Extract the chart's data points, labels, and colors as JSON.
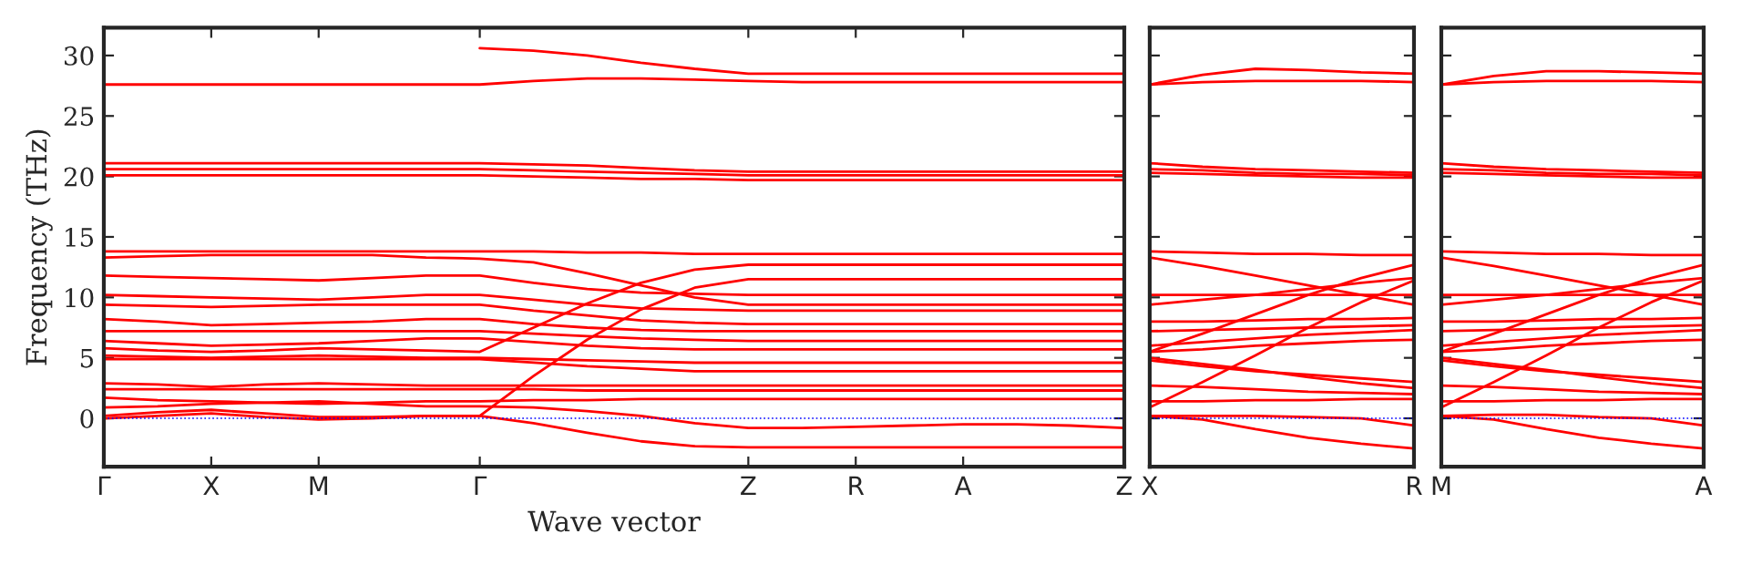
{
  "chart_data": [
    {
      "type": "line",
      "xlabel": "Wave vector",
      "ylabel": "Frequency (THz)",
      "categories": [
        "Γ",
        null,
        "X",
        null,
        "M",
        null,
        null,
        "Γ",
        null,
        null,
        null,
        null,
        "Z",
        null,
        "R",
        null,
        "A",
        null,
        null,
        "Z"
      ],
      "ylim": [
        -4,
        32.3
      ],
      "yticks": [
        0,
        5,
        10,
        15,
        20,
        25,
        30
      ],
      "grid": false,
      "marker": "none",
      "line_style": "solid",
      "ref_lines": [
        {
          "axis": "y",
          "value": 0,
          "color": "#0000ff",
          "line_style": "dotted"
        }
      ],
      "series": [
        {
          "color": "#ff0000",
          "values": [
            null,
            null,
            null,
            null,
            null,
            null,
            null,
            30.6,
            30.4,
            30.0,
            29.4,
            28.9,
            28.5,
            28.5,
            28.5,
            28.5,
            28.5,
            28.5,
            28.5,
            28.5
          ]
        },
        {
          "color": "#ff0000",
          "values": [
            27.6,
            27.6,
            27.6,
            27.6,
            27.6,
            27.6,
            27.6,
            27.6,
            27.9,
            28.1,
            28.1,
            28.0,
            27.9,
            27.8,
            27.8,
            27.8,
            27.8,
            27.8,
            27.8,
            27.8
          ]
        },
        {
          "color": "#ff0000",
          "values": [
            21.1,
            21.1,
            21.1,
            21.1,
            21.1,
            21.1,
            21.1,
            21.1,
            21.0,
            20.9,
            20.7,
            20.5,
            20.4,
            20.4,
            20.4,
            20.4,
            20.4,
            20.4,
            20.4,
            20.4
          ]
        },
        {
          "color": "#ff0000",
          "values": [
            20.6,
            20.6,
            20.6,
            20.6,
            20.6,
            20.6,
            20.6,
            20.6,
            20.5,
            20.4,
            20.3,
            20.2,
            20.1,
            20.1,
            20.1,
            20.1,
            20.1,
            20.1,
            20.1,
            20.1
          ]
        },
        {
          "color": "#ff0000",
          "values": [
            20.1,
            20.1,
            20.1,
            20.1,
            20.1,
            20.1,
            20.1,
            20.1,
            20.0,
            19.9,
            19.8,
            19.8,
            19.7,
            19.7,
            19.7,
            19.7,
            19.7,
            19.7,
            19.7,
            19.7
          ]
        },
        {
          "color": "#ff0000",
          "values": [
            13.8,
            13.8,
            13.8,
            13.8,
            13.8,
            13.8,
            13.8,
            13.8,
            13.8,
            13.7,
            13.7,
            13.6,
            13.6,
            13.6,
            13.6,
            13.6,
            13.6,
            13.6,
            13.6,
            13.6
          ]
        },
        {
          "color": "#ff0000",
          "values": [
            13.3,
            13.4,
            13.5,
            13.5,
            13.5,
            13.5,
            13.3,
            13.2,
            12.9,
            12.0,
            11.0,
            10.0,
            9.4,
            9.4,
            9.4,
            9.4,
            9.4,
            9.4,
            9.4,
            9.4
          ]
        },
        {
          "color": "#ff0000",
          "values": [
            5.8,
            5.6,
            5.5,
            5.6,
            5.8,
            5.7,
            5.6,
            5.5,
            7.5,
            9.5,
            11.2,
            12.3,
            12.7,
            12.7,
            12.7,
            12.7,
            12.7,
            12.7,
            12.7,
            12.7
          ]
        },
        {
          "color": "#ff0000",
          "values": [
            0.2,
            0.5,
            0.7,
            0.4,
            0.1,
            0.1,
            0.2,
            0.2,
            3.5,
            6.5,
            9.0,
            10.8,
            11.5,
            11.5,
            11.5,
            11.5,
            11.5,
            11.5,
            11.5,
            11.5
          ]
        },
        {
          "color": "#ff0000",
          "values": [
            11.8,
            11.7,
            11.6,
            11.5,
            11.4,
            11.6,
            11.8,
            11.8,
            11.2,
            10.7,
            10.4,
            10.3,
            10.2,
            10.2,
            10.2,
            10.2,
            10.2,
            10.2,
            10.2,
            10.2
          ]
        },
        {
          "color": "#ff0000",
          "values": [
            10.2,
            10.1,
            10.0,
            9.9,
            9.8,
            10.0,
            10.2,
            10.2,
            9.8,
            9.4,
            9.1,
            9.0,
            8.9,
            8.9,
            8.9,
            8.9,
            8.9,
            8.9,
            8.9,
            8.9
          ]
        },
        {
          "color": "#ff0000",
          "values": [
            9.4,
            9.3,
            9.2,
            9.3,
            9.4,
            9.4,
            9.4,
            9.4,
            8.9,
            8.5,
            8.1,
            7.9,
            7.8,
            7.8,
            7.8,
            7.8,
            7.8,
            7.8,
            7.8,
            7.8
          ]
        },
        {
          "color": "#ff0000",
          "values": [
            8.2,
            8.0,
            7.7,
            7.8,
            7.9,
            8.0,
            8.2,
            8.2,
            7.8,
            7.5,
            7.3,
            7.2,
            7.2,
            7.2,
            7.2,
            7.2,
            7.2,
            7.2,
            7.2,
            7.2
          ]
        },
        {
          "color": "#ff0000",
          "values": [
            7.2,
            7.2,
            7.2,
            7.2,
            7.2,
            7.2,
            7.2,
            7.2,
            7.0,
            6.8,
            6.6,
            6.5,
            6.4,
            6.4,
            6.4,
            6.4,
            6.4,
            6.4,
            6.4,
            6.4
          ]
        },
        {
          "color": "#ff0000",
          "values": [
            6.4,
            6.2,
            6.0,
            6.1,
            6.2,
            6.4,
            6.6,
            6.6,
            6.3,
            6.0,
            5.8,
            5.7,
            5.7,
            5.7,
            5.7,
            5.7,
            5.7,
            5.7,
            5.7,
            5.7
          ]
        },
        {
          "color": "#ff0000",
          "values": [
            5.2,
            5.1,
            5.0,
            5.1,
            5.2,
            5.1,
            5.0,
            5.0,
            4.9,
            4.8,
            4.7,
            4.6,
            4.6,
            4.6,
            4.6,
            4.6,
            4.6,
            4.6,
            4.6,
            4.6
          ]
        },
        {
          "color": "#ff0000",
          "values": [
            4.9,
            4.9,
            4.9,
            4.9,
            4.9,
            4.9,
            4.9,
            4.9,
            4.6,
            4.3,
            4.1,
            3.9,
            3.9,
            3.9,
            3.9,
            3.9,
            3.9,
            3.9,
            3.9,
            3.9
          ]
        },
        {
          "color": "#ff0000",
          "values": [
            2.9,
            2.8,
            2.6,
            2.8,
            2.9,
            2.8,
            2.7,
            2.7,
            2.7,
            2.7,
            2.7,
            2.7,
            2.7,
            2.7,
            2.7,
            2.7,
            2.7,
            2.7,
            2.7,
            2.7
          ]
        },
        {
          "color": "#ff0000",
          "values": [
            2.4,
            2.4,
            2.4,
            2.4,
            2.4,
            2.4,
            2.4,
            2.4,
            2.4,
            2.3,
            2.3,
            2.3,
            2.3,
            2.3,
            2.3,
            2.3,
            2.3,
            2.3,
            2.3,
            2.3
          ]
        },
        {
          "color": "#ff0000",
          "values": [
            1.7,
            1.5,
            1.4,
            1.3,
            1.2,
            1.3,
            1.4,
            1.4,
            1.5,
            1.5,
            1.6,
            1.6,
            1.6,
            1.6,
            1.6,
            1.6,
            1.6,
            1.6,
            1.6,
            1.6
          ]
        },
        {
          "color": "#ff0000",
          "values": [
            0.9,
            1.0,
            1.2,
            1.3,
            1.4,
            1.2,
            1.0,
            1.0,
            0.9,
            0.6,
            0.2,
            -0.4,
            -0.8,
            -0.8,
            -0.7,
            -0.6,
            -0.5,
            -0.5,
            -0.6,
            -0.8
          ]
        },
        {
          "color": "#ff0000",
          "values": [
            0.0,
            0.2,
            0.4,
            0.1,
            -0.1,
            0.0,
            0.2,
            0.2,
            -0.4,
            -1.2,
            -1.9,
            -2.3,
            -2.4,
            -2.4,
            -2.4,
            -2.4,
            -2.4,
            -2.4,
            -2.4,
            -2.4
          ]
        }
      ]
    },
    {
      "type": "line",
      "categories": [
        "X",
        null,
        null,
        null,
        null,
        "R"
      ],
      "ylim": [
        -4,
        32.3
      ],
      "yticks": [
        0,
        5,
        10,
        15,
        20,
        25,
        30
      ],
      "tick_labels": "x",
      "grid": false,
      "marker": "none",
      "line_style": "solid",
      "ref_lines": [
        {
          "axis": "y",
          "value": 0,
          "color": "#0000ff",
          "line_style": "dotted"
        }
      ],
      "series": [
        {
          "color": "#ff0000",
          "values": [
            27.6,
            28.4,
            28.9,
            28.8,
            28.6,
            28.5
          ]
        },
        {
          "color": "#ff0000",
          "values": [
            27.6,
            27.8,
            27.9,
            27.9,
            27.9,
            27.8
          ]
        },
        {
          "color": "#ff0000",
          "values": [
            21.1,
            20.8,
            20.6,
            20.5,
            20.4,
            20.3
          ]
        },
        {
          "color": "#ff0000",
          "values": [
            20.6,
            20.5,
            20.3,
            20.2,
            20.2,
            20.1
          ]
        },
        {
          "color": "#ff0000",
          "values": [
            20.3,
            20.2,
            20.1,
            20.0,
            19.9,
            19.9
          ]
        },
        {
          "color": "#ff0000",
          "values": [
            13.8,
            13.7,
            13.6,
            13.6,
            13.5,
            13.5
          ]
        },
        {
          "color": "#ff0000",
          "values": [
            13.3,
            12.6,
            11.8,
            11.0,
            10.2,
            9.4
          ]
        },
        {
          "color": "#ff0000",
          "values": [
            5.5,
            7.0,
            8.6,
            10.2,
            11.6,
            12.7
          ]
        },
        {
          "color": "#ff0000",
          "values": [
            0.9,
            3.0,
            5.2,
            7.5,
            9.6,
            11.4
          ]
        },
        {
          "color": "#ff0000",
          "values": [
            10.2,
            10.2,
            10.2,
            10.2,
            10.2,
            10.2
          ]
        },
        {
          "color": "#ff0000",
          "values": [
            9.4,
            9.8,
            10.2,
            10.7,
            11.2,
            11.6
          ]
        },
        {
          "color": "#ff0000",
          "values": [
            8.0,
            8.0,
            8.1,
            8.2,
            8.2,
            8.3
          ]
        },
        {
          "color": "#ff0000",
          "values": [
            7.2,
            7.3,
            7.4,
            7.5,
            7.6,
            7.7
          ]
        },
        {
          "color": "#ff0000",
          "values": [
            6.0,
            6.3,
            6.6,
            6.9,
            7.1,
            7.3
          ]
        },
        {
          "color": "#ff0000",
          "values": [
            5.5,
            5.7,
            6.0,
            6.2,
            6.4,
            6.5
          ]
        },
        {
          "color": "#ff0000",
          "values": [
            5.0,
            4.5,
            4.0,
            3.4,
            2.9,
            2.5
          ]
        },
        {
          "color": "#ff0000",
          "values": [
            4.8,
            4.3,
            3.9,
            3.6,
            3.3,
            3.0
          ]
        },
        {
          "color": "#ff0000",
          "values": [
            2.7,
            2.6,
            2.4,
            2.2,
            2.1,
            2.0
          ]
        },
        {
          "color": "#ff0000",
          "values": [
            1.4,
            1.4,
            1.5,
            1.5,
            1.6,
            1.6
          ]
        },
        {
          "color": "#ff0000",
          "values": [
            0.2,
            0.2,
            0.2,
            0.1,
            0.0,
            -0.6
          ]
        },
        {
          "color": "#ff0000",
          "values": [
            0.2,
            -0.1,
            -0.9,
            -1.6,
            -2.1,
            -2.5
          ]
        }
      ]
    },
    {
      "type": "line",
      "categories": [
        "M",
        null,
        null,
        null,
        null,
        "A"
      ],
      "ylim": [
        -4,
        32.3
      ],
      "yticks": [
        0,
        5,
        10,
        15,
        20,
        25,
        30
      ],
      "tick_labels": "x",
      "grid": false,
      "marker": "none",
      "line_style": "solid",
      "ref_lines": [
        {
          "axis": "y",
          "value": 0,
          "color": "#0000ff",
          "line_style": "dotted"
        }
      ],
      "series": [
        {
          "color": "#ff0000",
          "values": [
            27.6,
            28.3,
            28.7,
            28.7,
            28.6,
            28.5
          ]
        },
        {
          "color": "#ff0000",
          "values": [
            27.6,
            27.8,
            27.9,
            27.9,
            27.9,
            27.8
          ]
        },
        {
          "color": "#ff0000",
          "values": [
            21.1,
            20.8,
            20.6,
            20.5,
            20.4,
            20.3
          ]
        },
        {
          "color": "#ff0000",
          "values": [
            20.6,
            20.5,
            20.3,
            20.2,
            20.2,
            20.1
          ]
        },
        {
          "color": "#ff0000",
          "values": [
            20.3,
            20.2,
            20.1,
            20.0,
            19.9,
            19.9
          ]
        },
        {
          "color": "#ff0000",
          "values": [
            13.8,
            13.7,
            13.6,
            13.6,
            13.5,
            13.5
          ]
        },
        {
          "color": "#ff0000",
          "values": [
            13.3,
            12.6,
            11.8,
            11.0,
            10.2,
            9.4
          ]
        },
        {
          "color": "#ff0000",
          "values": [
            5.5,
            7.0,
            8.6,
            10.2,
            11.6,
            12.7
          ]
        },
        {
          "color": "#ff0000",
          "values": [
            0.9,
            3.0,
            5.2,
            7.5,
            9.6,
            11.4
          ]
        },
        {
          "color": "#ff0000",
          "values": [
            10.2,
            10.2,
            10.2,
            10.2,
            10.2,
            10.2
          ]
        },
        {
          "color": "#ff0000",
          "values": [
            9.4,
            9.8,
            10.2,
            10.7,
            11.2,
            11.6
          ]
        },
        {
          "color": "#ff0000",
          "values": [
            8.0,
            8.0,
            8.1,
            8.2,
            8.2,
            8.3
          ]
        },
        {
          "color": "#ff0000",
          "values": [
            7.2,
            7.3,
            7.4,
            7.5,
            7.6,
            7.7
          ]
        },
        {
          "color": "#ff0000",
          "values": [
            6.0,
            6.3,
            6.6,
            6.9,
            7.1,
            7.3
          ]
        },
        {
          "color": "#ff0000",
          "values": [
            5.5,
            5.7,
            6.0,
            6.2,
            6.4,
            6.5
          ]
        },
        {
          "color": "#ff0000",
          "values": [
            5.0,
            4.5,
            4.0,
            3.4,
            2.9,
            2.5
          ]
        },
        {
          "color": "#ff0000",
          "values": [
            4.8,
            4.3,
            3.9,
            3.6,
            3.3,
            3.0
          ]
        },
        {
          "color": "#ff0000",
          "values": [
            2.7,
            2.6,
            2.4,
            2.2,
            2.1,
            2.0
          ]
        },
        {
          "color": "#ff0000",
          "values": [
            1.4,
            1.4,
            1.5,
            1.5,
            1.6,
            1.6
          ]
        },
        {
          "color": "#ff0000",
          "values": [
            0.2,
            0.3,
            0.3,
            0.1,
            0.0,
            -0.6
          ]
        },
        {
          "color": "#ff0000",
          "values": [
            0.2,
            -0.1,
            -0.9,
            -1.6,
            -2.1,
            -2.5
          ]
        }
      ]
    }
  ]
}
